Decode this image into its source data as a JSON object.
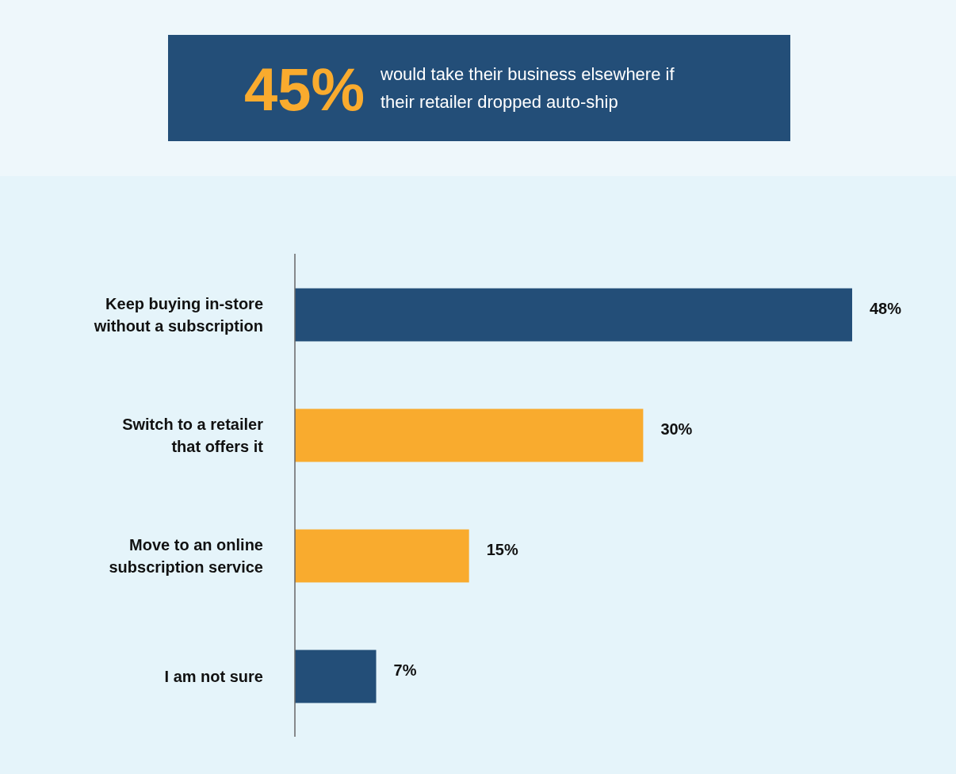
{
  "chart_data": {
    "type": "bar",
    "orientation": "horizontal",
    "title": "45%",
    "subtitle": "would take their business elsewhere if their retailer dropped auto-ship",
    "categories": [
      "Keep buying in-store without a subscription",
      "Switch to a retailer that offers it",
      "Move to an online subscription service",
      "I am not sure"
    ],
    "values": [
      48,
      30,
      15,
      7
    ],
    "colors": [
      "#234e78",
      "#f9ab2e",
      "#f9ab2e",
      "#234e78"
    ],
    "value_labels": [
      "48%",
      "30%",
      "15%",
      "7%"
    ],
    "tick_labels": "y",
    "grid": false
  }
}
